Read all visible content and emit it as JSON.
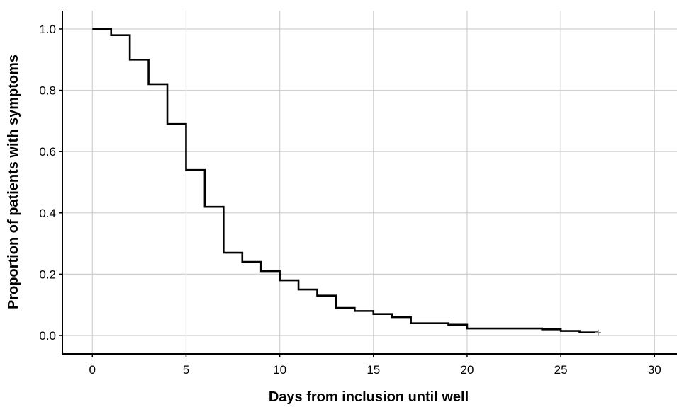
{
  "chart_data": {
    "type": "line",
    "subtype": "kaplan-meier-step",
    "title": "",
    "xlabel": "Days from inclusion until well",
    "ylabel": "Proportion of patients with symptoms",
    "xlim": [
      -1.6,
      31.2
    ],
    "ylim": [
      -0.06,
      1.06
    ],
    "xticks": [
      0,
      5,
      10,
      15,
      20,
      25,
      30
    ],
    "yticks": [
      0.0,
      0.2,
      0.4,
      0.6,
      0.8,
      1.0
    ],
    "xtick_labels": [
      "0",
      "5",
      "10",
      "15",
      "20",
      "25",
      "30"
    ],
    "ytick_labels": [
      "0.0",
      "0.2",
      "0.4",
      "0.6",
      "0.8",
      "1.0"
    ],
    "grid": true,
    "series": [
      {
        "name": "",
        "color": "#000000",
        "x": [
          0,
          1,
          2,
          3,
          4,
          5,
          6,
          7,
          8,
          9,
          10,
          11,
          12,
          13,
          14,
          15,
          16,
          17,
          19,
          20,
          24,
          25,
          26,
          27
        ],
        "y": [
          1.0,
          0.98,
          0.9,
          0.82,
          0.69,
          0.54,
          0.42,
          0.27,
          0.24,
          0.21,
          0.18,
          0.15,
          0.13,
          0.09,
          0.08,
          0.07,
          0.06,
          0.04,
          0.035,
          0.023,
          0.02,
          0.015,
          0.01,
          0.01
        ],
        "censored": [
          {
            "x": 27,
            "y": 0.01
          }
        ]
      }
    ]
  }
}
